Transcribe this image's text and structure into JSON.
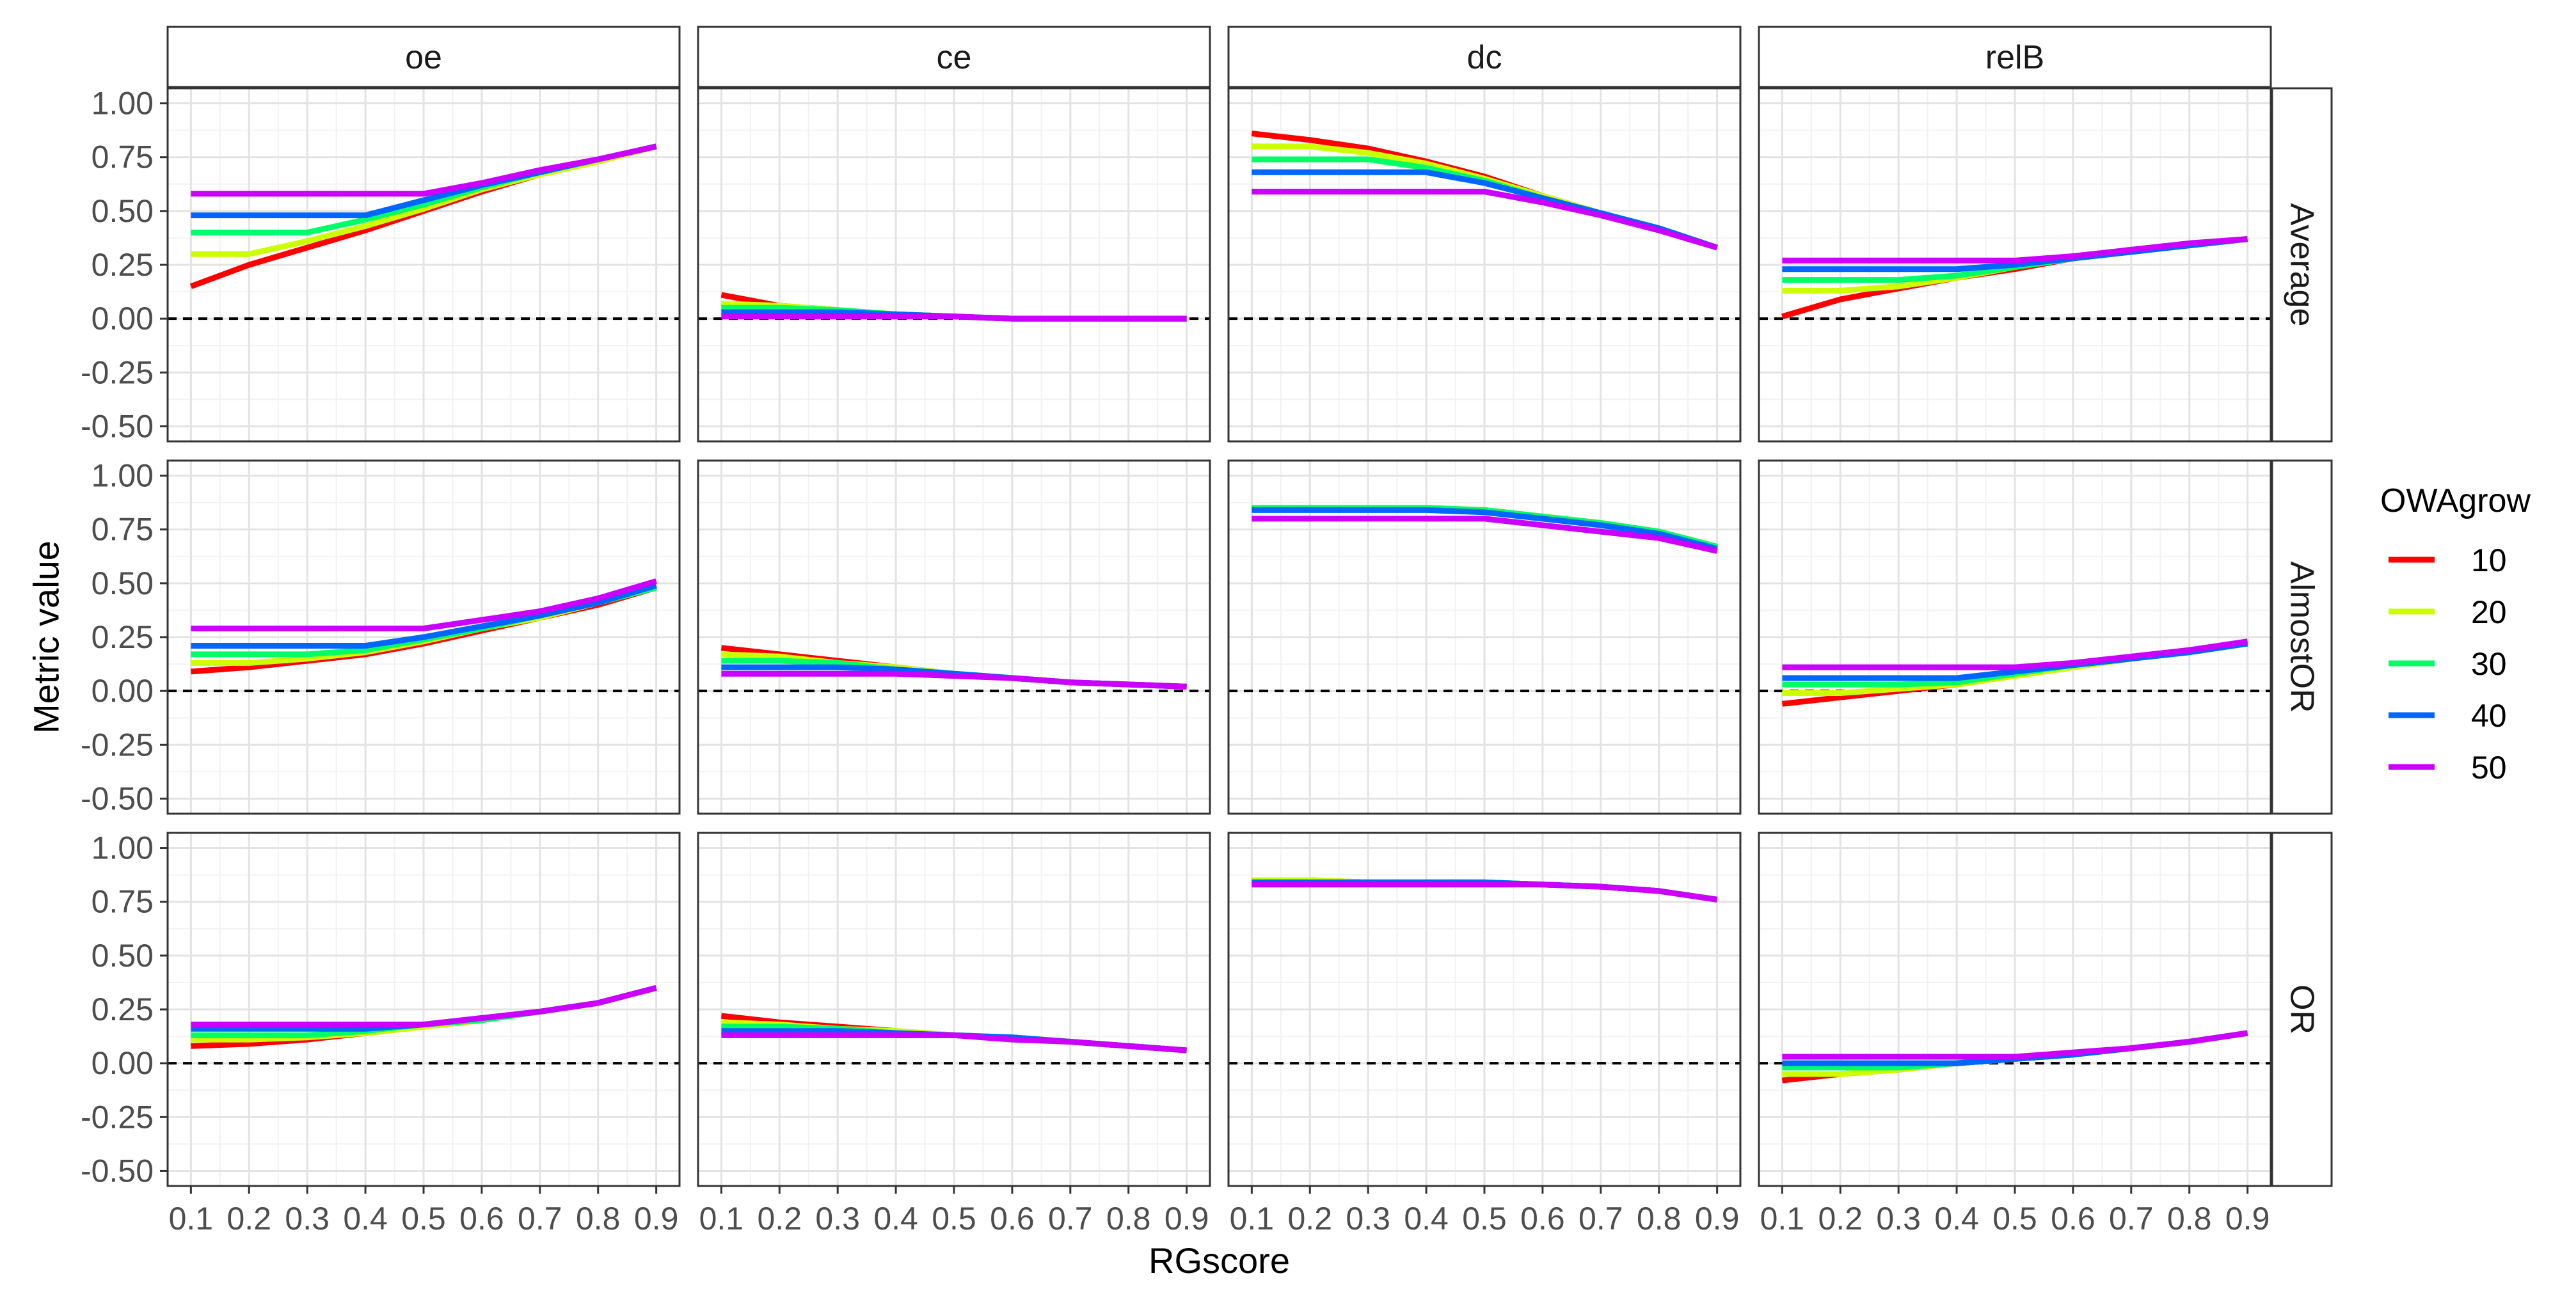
{
  "chart_data": {
    "type": "line",
    "xlabel": "RGscore",
    "ylabel": "Metric value",
    "x": [
      0.1,
      0.2,
      0.3,
      0.4,
      0.5,
      0.6,
      0.7,
      0.8,
      0.9
    ],
    "x_tick_labels": [
      "0.1",
      "0.2",
      "0.3",
      "0.4",
      "0.5",
      "0.6",
      "0.7",
      "0.8",
      "0.9"
    ],
    "xlim": [
      0.06,
      0.94
    ],
    "ylim": [
      -0.57,
      1.07
    ],
    "y_ticks": [
      1.0,
      0.75,
      0.5,
      0.25,
      0.0,
      -0.25,
      -0.5
    ],
    "y_tick_labels": [
      "1.00",
      "0.75",
      "0.50",
      "0.25",
      "0.00",
      "-0.25",
      "-0.50"
    ],
    "reference_line": 0,
    "grid": true,
    "legend": {
      "title": "OWAgrow",
      "position": "right",
      "entries": [
        {
          "label": "10",
          "color": "#ff0000"
        },
        {
          "label": "20",
          "color": "#ccff00"
        },
        {
          "label": "30",
          "color": "#00ff66"
        },
        {
          "label": "40",
          "color": "#0066ff"
        },
        {
          "label": "50",
          "color": "#cc00ff"
        }
      ]
    },
    "col_facets": [
      "oe",
      "ce",
      "dc",
      "relB"
    ],
    "row_facets": [
      "Average",
      "AlmostOR",
      "OR"
    ],
    "panels": [
      {
        "row": "Average",
        "col": "oe",
        "series": [
          {
            "name": "10",
            "values": [
              0.15,
              0.25,
              0.33,
              0.41,
              0.5,
              0.59,
              0.67,
              0.73,
              0.8
            ]
          },
          {
            "name": "20",
            "values": [
              0.3,
              0.3,
              0.36,
              0.43,
              0.51,
              0.6,
              0.67,
              0.73,
              0.8
            ]
          },
          {
            "name": "30",
            "values": [
              0.4,
              0.4,
              0.4,
              0.46,
              0.53,
              0.61,
              0.68,
              0.74,
              0.8
            ]
          },
          {
            "name": "40",
            "values": [
              0.48,
              0.48,
              0.48,
              0.48,
              0.55,
              0.62,
              0.68,
              0.74,
              0.8
            ]
          },
          {
            "name": "50",
            "values": [
              0.58,
              0.58,
              0.58,
              0.58,
              0.58,
              0.63,
              0.69,
              0.74,
              0.8
            ]
          }
        ]
      },
      {
        "row": "Average",
        "col": "ce",
        "series": [
          {
            "name": "10",
            "values": [
              0.11,
              0.06,
              0.04,
              0.02,
              0.01,
              0.0,
              0.0,
              0.0,
              0.0
            ]
          },
          {
            "name": "20",
            "values": [
              0.07,
              0.06,
              0.04,
              0.02,
              0.01,
              0.0,
              0.0,
              0.0,
              0.0
            ]
          },
          {
            "name": "30",
            "values": [
              0.05,
              0.05,
              0.04,
              0.02,
              0.01,
              0.0,
              0.0,
              0.0,
              0.0
            ]
          },
          {
            "name": "40",
            "values": [
              0.03,
              0.03,
              0.03,
              0.02,
              0.01,
              0.0,
              0.0,
              0.0,
              0.0
            ]
          },
          {
            "name": "50",
            "values": [
              0.01,
              0.01,
              0.01,
              0.01,
              0.01,
              0.0,
              0.0,
              0.0,
              0.0
            ]
          }
        ]
      },
      {
        "row": "Average",
        "col": "dc",
        "series": [
          {
            "name": "10",
            "values": [
              0.86,
              0.83,
              0.79,
              0.73,
              0.66,
              0.57,
              0.49,
              0.42,
              0.33
            ]
          },
          {
            "name": "20",
            "values": [
              0.8,
              0.8,
              0.77,
              0.72,
              0.65,
              0.57,
              0.49,
              0.42,
              0.33
            ]
          },
          {
            "name": "30",
            "values": [
              0.74,
              0.74,
              0.74,
              0.7,
              0.64,
              0.56,
              0.49,
              0.42,
              0.33
            ]
          },
          {
            "name": "40",
            "values": [
              0.68,
              0.68,
              0.68,
              0.68,
              0.63,
              0.56,
              0.49,
              0.42,
              0.33
            ]
          },
          {
            "name": "50",
            "values": [
              0.59,
              0.59,
              0.59,
              0.59,
              0.59,
              0.54,
              0.48,
              0.41,
              0.33
            ]
          }
        ]
      },
      {
        "row": "Average",
        "col": "relB",
        "series": [
          {
            "name": "10",
            "values": [
              0.01,
              0.09,
              0.14,
              0.19,
              0.23,
              0.28,
              0.31,
              0.34,
              0.37
            ]
          },
          {
            "name": "20",
            "values": [
              0.13,
              0.13,
              0.15,
              0.19,
              0.24,
              0.28,
              0.31,
              0.34,
              0.37
            ]
          },
          {
            "name": "30",
            "values": [
              0.18,
              0.18,
              0.18,
              0.2,
              0.24,
              0.28,
              0.31,
              0.34,
              0.37
            ]
          },
          {
            "name": "40",
            "values": [
              0.23,
              0.23,
              0.23,
              0.23,
              0.25,
              0.28,
              0.31,
              0.34,
              0.37
            ]
          },
          {
            "name": "50",
            "values": [
              0.27,
              0.27,
              0.27,
              0.27,
              0.27,
              0.29,
              0.32,
              0.35,
              0.37
            ]
          }
        ]
      },
      {
        "row": "AlmostOR",
        "col": "oe",
        "series": [
          {
            "name": "10",
            "values": [
              0.09,
              0.11,
              0.14,
              0.17,
              0.22,
              0.28,
              0.34,
              0.4,
              0.48
            ]
          },
          {
            "name": "20",
            "values": [
              0.13,
              0.13,
              0.15,
              0.18,
              0.23,
              0.29,
              0.34,
              0.41,
              0.48
            ]
          },
          {
            "name": "30",
            "values": [
              0.17,
              0.17,
              0.17,
              0.19,
              0.24,
              0.29,
              0.35,
              0.41,
              0.48
            ]
          },
          {
            "name": "40",
            "values": [
              0.21,
              0.21,
              0.21,
              0.21,
              0.25,
              0.3,
              0.35,
              0.41,
              0.49
            ]
          },
          {
            "name": "50",
            "values": [
              0.29,
              0.29,
              0.29,
              0.29,
              0.29,
              0.33,
              0.37,
              0.43,
              0.51
            ]
          }
        ]
      },
      {
        "row": "AlmostOR",
        "col": "ce",
        "series": [
          {
            "name": "10",
            "values": [
              0.2,
              0.17,
              0.14,
              0.11,
              0.08,
              0.06,
              0.04,
              0.03,
              0.02
            ]
          },
          {
            "name": "20",
            "values": [
              0.17,
              0.16,
              0.13,
              0.11,
              0.08,
              0.06,
              0.04,
              0.03,
              0.02
            ]
          },
          {
            "name": "30",
            "values": [
              0.14,
              0.14,
              0.13,
              0.1,
              0.08,
              0.06,
              0.04,
              0.03,
              0.02
            ]
          },
          {
            "name": "40",
            "values": [
              0.11,
              0.11,
              0.11,
              0.1,
              0.08,
              0.06,
              0.04,
              0.03,
              0.02
            ]
          },
          {
            "name": "50",
            "values": [
              0.08,
              0.08,
              0.08,
              0.08,
              0.07,
              0.06,
              0.04,
              0.03,
              0.02
            ]
          }
        ]
      },
      {
        "row": "AlmostOR",
        "col": "dc",
        "series": [
          {
            "name": "10",
            "values": [
              0.85,
              0.85,
              0.85,
              0.85,
              0.84,
              0.81,
              0.78,
              0.74,
              0.67
            ]
          },
          {
            "name": "20",
            "values": [
              0.85,
              0.85,
              0.85,
              0.85,
              0.84,
              0.81,
              0.78,
              0.74,
              0.67
            ]
          },
          {
            "name": "30",
            "values": [
              0.85,
              0.85,
              0.85,
              0.85,
              0.84,
              0.81,
              0.78,
              0.74,
              0.67
            ]
          },
          {
            "name": "40",
            "values": [
              0.84,
              0.84,
              0.84,
              0.84,
              0.83,
              0.8,
              0.77,
              0.73,
              0.66
            ]
          },
          {
            "name": "50",
            "values": [
              0.8,
              0.8,
              0.8,
              0.8,
              0.8,
              0.77,
              0.74,
              0.71,
              0.65
            ]
          }
        ]
      },
      {
        "row": "AlmostOR",
        "col": "relB",
        "series": [
          {
            "name": "10",
            "values": [
              -0.06,
              -0.03,
              0.0,
              0.03,
              0.07,
              0.11,
              0.15,
              0.18,
              0.22
            ]
          },
          {
            "name": "20",
            "values": [
              -0.01,
              -0.01,
              0.01,
              0.03,
              0.07,
              0.11,
              0.15,
              0.18,
              0.22
            ]
          },
          {
            "name": "30",
            "values": [
              0.03,
              0.03,
              0.03,
              0.04,
              0.08,
              0.12,
              0.15,
              0.18,
              0.22
            ]
          },
          {
            "name": "40",
            "values": [
              0.06,
              0.06,
              0.06,
              0.06,
              0.09,
              0.12,
              0.15,
              0.18,
              0.22
            ]
          },
          {
            "name": "50",
            "values": [
              0.11,
              0.11,
              0.11,
              0.11,
              0.11,
              0.13,
              0.16,
              0.19,
              0.23
            ]
          }
        ]
      },
      {
        "row": "OR",
        "col": "oe",
        "series": [
          {
            "name": "10",
            "values": [
              0.08,
              0.09,
              0.11,
              0.14,
              0.17,
              0.2,
              0.24,
              0.28,
              0.35
            ]
          },
          {
            "name": "20",
            "values": [
              0.11,
              0.11,
              0.12,
              0.14,
              0.17,
              0.2,
              0.24,
              0.28,
              0.35
            ]
          },
          {
            "name": "30",
            "values": [
              0.13,
              0.13,
              0.13,
              0.15,
              0.18,
              0.2,
              0.24,
              0.28,
              0.35
            ]
          },
          {
            "name": "40",
            "values": [
              0.16,
              0.16,
              0.16,
              0.16,
              0.18,
              0.21,
              0.24,
              0.28,
              0.35
            ]
          },
          {
            "name": "50",
            "values": [
              0.18,
              0.18,
              0.18,
              0.18,
              0.18,
              0.21,
              0.24,
              0.28,
              0.35
            ]
          }
        ]
      },
      {
        "row": "OR",
        "col": "ce",
        "series": [
          {
            "name": "10",
            "values": [
              0.22,
              0.19,
              0.17,
              0.15,
              0.13,
              0.12,
              0.1,
              0.08,
              0.06
            ]
          },
          {
            "name": "20",
            "values": [
              0.19,
              0.18,
              0.16,
              0.15,
              0.13,
              0.12,
              0.1,
              0.08,
              0.06
            ]
          },
          {
            "name": "30",
            "values": [
              0.17,
              0.17,
              0.16,
              0.14,
              0.13,
              0.12,
              0.1,
              0.08,
              0.06
            ]
          },
          {
            "name": "40",
            "values": [
              0.15,
              0.15,
              0.15,
              0.14,
              0.13,
              0.12,
              0.1,
              0.08,
              0.06
            ]
          },
          {
            "name": "50",
            "values": [
              0.13,
              0.13,
              0.13,
              0.13,
              0.13,
              0.11,
              0.1,
              0.08,
              0.06
            ]
          }
        ]
      },
      {
        "row": "OR",
        "col": "dc",
        "series": [
          {
            "name": "10",
            "values": [
              0.85,
              0.85,
              0.84,
              0.84,
              0.84,
              0.83,
              0.82,
              0.8,
              0.76
            ]
          },
          {
            "name": "20",
            "values": [
              0.85,
              0.85,
              0.84,
              0.84,
              0.84,
              0.83,
              0.82,
              0.8,
              0.76
            ]
          },
          {
            "name": "30",
            "values": [
              0.84,
              0.84,
              0.84,
              0.84,
              0.84,
              0.83,
              0.82,
              0.8,
              0.76
            ]
          },
          {
            "name": "40",
            "values": [
              0.84,
              0.84,
              0.84,
              0.84,
              0.84,
              0.83,
              0.82,
              0.8,
              0.76
            ]
          },
          {
            "name": "50",
            "values": [
              0.83,
              0.83,
              0.83,
              0.83,
              0.83,
              0.83,
              0.82,
              0.8,
              0.76
            ]
          }
        ]
      },
      {
        "row": "OR",
        "col": "relB",
        "series": [
          {
            "name": "10",
            "values": [
              -0.08,
              -0.05,
              -0.03,
              0.0,
              0.02,
              0.04,
              0.07,
              0.1,
              0.14
            ]
          },
          {
            "name": "20",
            "values": [
              -0.05,
              -0.05,
              -0.03,
              0.0,
              0.02,
              0.04,
              0.07,
              0.1,
              0.14
            ]
          },
          {
            "name": "30",
            "values": [
              -0.02,
              -0.02,
              -0.02,
              0.0,
              0.02,
              0.04,
              0.07,
              0.1,
              0.14
            ]
          },
          {
            "name": "40",
            "values": [
              0.0,
              0.0,
              0.0,
              0.0,
              0.02,
              0.04,
              0.07,
              0.1,
              0.14
            ]
          },
          {
            "name": "50",
            "values": [
              0.03,
              0.03,
              0.03,
              0.03,
              0.03,
              0.05,
              0.07,
              0.1,
              0.14
            ]
          }
        ]
      }
    ]
  }
}
